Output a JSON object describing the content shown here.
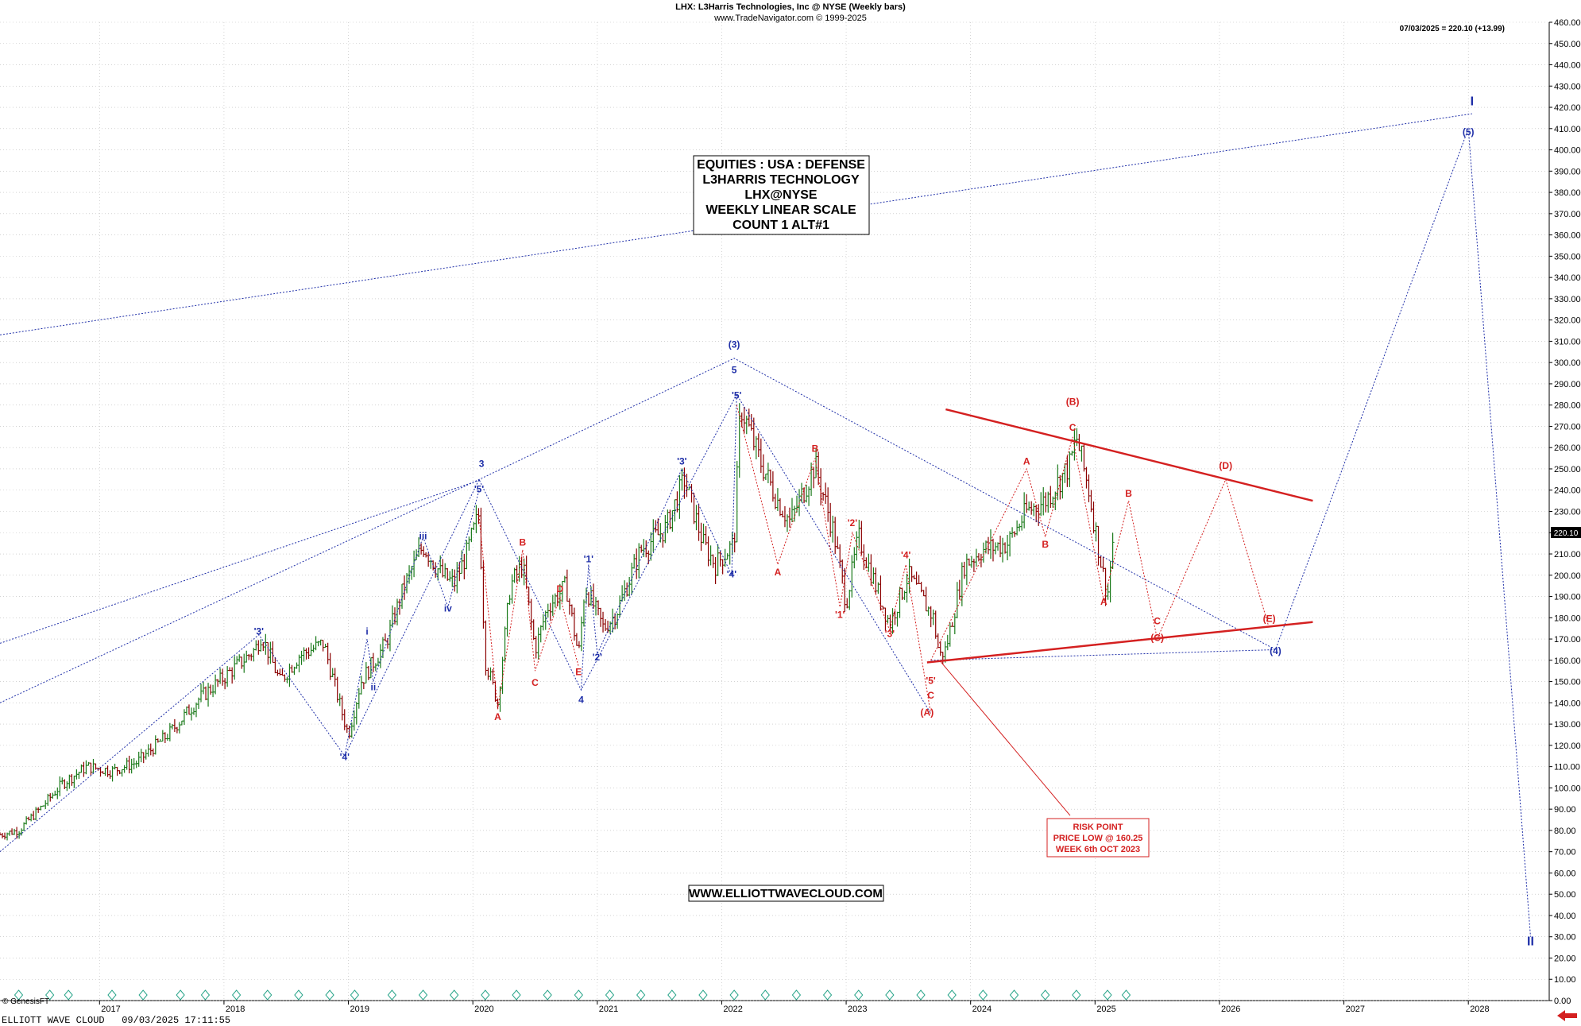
{
  "header": {
    "title": "LHX:  L3Harris Technologies, Inc @ NYSE  (Weekly bars)",
    "source": "www.TradeNavigator.com © 1999-2025",
    "last_price_note": "07/03/2025 = 220.10 (+13.99)"
  },
  "info_box": {
    "lines": [
      "EQUITIES : USA : DEFENSE",
      "L3HARRIS TECHNOLOGY",
      "LHX@NYSE",
      "WEEKLY LINEAR SCALE",
      "COUNT 1 ALT#1"
    ]
  },
  "risk_box": {
    "lines": [
      "RISK POINT",
      "PRICE LOW @ 160.25",
      "WEEK 6th OCT 2023"
    ]
  },
  "website": "WWW.ELLIOTTWAVECLOUD.COM",
  "footer": {
    "left": "ELLIOTT WAVE CLOUD   09/03/2025 17:11:55",
    "copyright": "© GenesisFT"
  },
  "price_tag": "220.10",
  "colors": {
    "blue": "#1f2fa8",
    "red": "#d42020",
    "bar_up": "#1a7a1a",
    "bar_down": "#8b0000",
    "grid": "#b9b9b9",
    "earnings_marker": "#2aa58a"
  },
  "chart_data": {
    "type": "line",
    "title": "LHX:  L3Harris Technologies, Inc @ NYSE  (Weekly bars)",
    "xlabel": "",
    "ylabel": "",
    "ylim": [
      0,
      460
    ],
    "y_ticks": [
      0,
      10,
      20,
      30,
      40,
      50,
      60,
      70,
      80,
      90,
      100,
      110,
      120,
      130,
      140,
      150,
      160,
      170,
      180,
      190,
      200,
      210,
      220,
      230,
      240,
      250,
      260,
      270,
      280,
      290,
      300,
      310,
      320,
      330,
      340,
      350,
      360,
      370,
      380,
      390,
      400,
      410,
      420,
      430,
      440,
      450,
      460
    ],
    "x_ticks": [
      "2017",
      "2018",
      "2019",
      "2020",
      "2021",
      "2022",
      "2023",
      "2024",
      "2025",
      "2026",
      "2027",
      "2028"
    ],
    "xlim": [
      2016.2,
      2028.65
    ],
    "grid": true,
    "price_path": [
      [
        2016.2,
        78
      ],
      [
        2016.35,
        80
      ],
      [
        2016.55,
        92
      ],
      [
        2016.7,
        102
      ],
      [
        2016.9,
        110
      ],
      [
        2017.1,
        108
      ],
      [
        2017.3,
        112
      ],
      [
        2017.55,
        125
      ],
      [
        2017.8,
        142
      ],
      [
        2018.0,
        152
      ],
      [
        2018.25,
        165
      ],
      [
        2018.3,
        172
      ],
      [
        2018.45,
        150
      ],
      [
        2018.6,
        162
      ],
      [
        2018.8,
        168
      ],
      [
        2018.95,
        135
      ],
      [
        2019.0,
        125
      ],
      [
        2019.1,
        150
      ],
      [
        2019.3,
        168
      ],
      [
        2019.45,
        195
      ],
      [
        2019.6,
        214
      ],
      [
        2019.75,
        200
      ],
      [
        2019.85,
        196
      ],
      [
        2019.95,
        210
      ],
      [
        2020.05,
        229
      ],
      [
        2020.1,
        160
      ],
      [
        2020.2,
        140
      ],
      [
        2020.3,
        195
      ],
      [
        2020.4,
        205
      ],
      [
        2020.5,
        165
      ],
      [
        2020.6,
        185
      ],
      [
        2020.75,
        195
      ],
      [
        2020.85,
        162
      ],
      [
        2020.9,
        195
      ],
      [
        2021.05,
        175
      ],
      [
        2021.15,
        182
      ],
      [
        2021.35,
        212
      ],
      [
        2021.55,
        222
      ],
      [
        2021.7,
        245
      ],
      [
        2021.85,
        215
      ],
      [
        2021.95,
        205
      ],
      [
        2022.1,
        215
      ],
      [
        2022.15,
        280
      ],
      [
        2022.3,
        255
      ],
      [
        2022.45,
        235
      ],
      [
        2022.55,
        225
      ],
      [
        2022.75,
        252
      ],
      [
        2022.9,
        220
      ],
      [
        2023.0,
        187
      ],
      [
        2023.1,
        218
      ],
      [
        2023.25,
        193
      ],
      [
        2023.35,
        177
      ],
      [
        2023.5,
        200
      ],
      [
        2023.6,
        190
      ],
      [
        2023.7,
        180
      ],
      [
        2023.75,
        162
      ],
      [
        2023.8,
        165
      ],
      [
        2023.95,
        205
      ],
      [
        2024.1,
        212
      ],
      [
        2024.3,
        215
      ],
      [
        2024.45,
        230
      ],
      [
        2024.6,
        235
      ],
      [
        2024.8,
        252
      ],
      [
        2024.85,
        265
      ],
      [
        2024.95,
        240
      ],
      [
        2025.05,
        205
      ],
      [
        2025.1,
        190
      ],
      [
        2025.15,
        220
      ]
    ],
    "wave_labels": [
      {
        "text": "'3'",
        "x": 2018.28,
        "y": 172,
        "color": "blue"
      },
      {
        "text": "'4'",
        "x": 2018.97,
        "y": 113,
        "color": "blue"
      },
      {
        "text": "i",
        "x": 2019.15,
        "y": 172,
        "color": "blue"
      },
      {
        "text": "ii",
        "x": 2019.2,
        "y": 146,
        "color": "blue"
      },
      {
        "text": "iii",
        "x": 2019.6,
        "y": 217,
        "color": "blue"
      },
      {
        "text": "iv",
        "x": 2019.8,
        "y": 183,
        "color": "blue"
      },
      {
        "text": "'5'",
        "x": 2020.05,
        "y": 239,
        "color": "blue"
      },
      {
        "text": "3",
        "x": 2020.07,
        "y": 251,
        "color": "blue"
      },
      {
        "text": "A",
        "x": 2020.2,
        "y": 132,
        "color": "red"
      },
      {
        "text": "B",
        "x": 2020.4,
        "y": 214,
        "color": "red"
      },
      {
        "text": "C",
        "x": 2020.5,
        "y": 148,
        "color": "red"
      },
      {
        "text": "D",
        "x": 2020.7,
        "y": 192,
        "color": "red"
      },
      {
        "text": "E",
        "x": 2020.85,
        "y": 153,
        "color": "red"
      },
      {
        "text": "4",
        "x": 2020.87,
        "y": 140,
        "color": "blue"
      },
      {
        "text": "'1'",
        "x": 2020.93,
        "y": 206,
        "color": "blue"
      },
      {
        "text": "'2'",
        "x": 2021.0,
        "y": 160,
        "color": "blue"
      },
      {
        "text": "'3'",
        "x": 2021.68,
        "y": 252,
        "color": "blue"
      },
      {
        "text": "'4'",
        "x": 2022.08,
        "y": 199,
        "color": "blue"
      },
      {
        "text": "'5'",
        "x": 2022.12,
        "y": 283,
        "color": "blue"
      },
      {
        "text": "5",
        "x": 2022.1,
        "y": 295,
        "color": "blue"
      },
      {
        "text": "(3)",
        "x": 2022.1,
        "y": 307,
        "color": "blue"
      },
      {
        "text": "A",
        "x": 2022.45,
        "y": 200,
        "color": "red"
      },
      {
        "text": "B",
        "x": 2022.75,
        "y": 258,
        "color": "red"
      },
      {
        "text": "'1'",
        "x": 2022.95,
        "y": 180,
        "color": "red"
      },
      {
        "text": "'2'",
        "x": 2023.05,
        "y": 223,
        "color": "red"
      },
      {
        "text": "'3'",
        "x": 2023.35,
        "y": 171,
        "color": "red"
      },
      {
        "text": "'4'",
        "x": 2023.48,
        "y": 208,
        "color": "red"
      },
      {
        "text": "'5'",
        "x": 2023.68,
        "y": 149,
        "color": "red"
      },
      {
        "text": "C",
        "x": 2023.68,
        "y": 142,
        "color": "red"
      },
      {
        "text": "(A)",
        "x": 2023.65,
        "y": 134,
        "color": "red"
      },
      {
        "text": "A",
        "x": 2024.45,
        "y": 252,
        "color": "red"
      },
      {
        "text": "B",
        "x": 2024.6,
        "y": 213,
        "color": "red"
      },
      {
        "text": "C",
        "x": 2024.82,
        "y": 268,
        "color": "red"
      },
      {
        "text": "(B)",
        "x": 2024.82,
        "y": 280,
        "color": "red"
      },
      {
        "text": "A",
        "x": 2025.07,
        "y": 186,
        "color": "red"
      },
      {
        "text": "B",
        "x": 2025.27,
        "y": 237,
        "color": "red"
      },
      {
        "text": "C",
        "x": 2025.5,
        "y": 177,
        "color": "red"
      },
      {
        "text": "(C)",
        "x": 2025.5,
        "y": 169,
        "color": "red"
      },
      {
        "text": "(D)",
        "x": 2026.05,
        "y": 250,
        "color": "red"
      },
      {
        "text": "(E)",
        "x": 2026.4,
        "y": 178,
        "color": "red"
      },
      {
        "text": "(4)",
        "x": 2026.45,
        "y": 163,
        "color": "blue"
      },
      {
        "text": "(5)",
        "x": 2028.0,
        "y": 407,
        "color": "blue"
      },
      {
        "text": "I",
        "x": 2028.03,
        "y": 421,
        "color": "blue"
      },
      {
        "text": "II",
        "x": 2028.5,
        "y": 26,
        "color": "blue"
      }
    ],
    "blue_wave_path": [
      [
        2016.2,
        70
      ],
      [
        2018.28,
        172
      ],
      [
        2018.97,
        115
      ],
      [
        2020.05,
        245
      ],
      [
        2020.87,
        146
      ],
      [
        2022.12,
        285
      ],
      [
        2023.68,
        135
      ]
    ],
    "blue_subwave_path": [
      [
        2018.97,
        115
      ],
      [
        2019.15,
        170
      ],
      [
        2019.2,
        150
      ],
      [
        2019.6,
        218
      ],
      [
        2019.8,
        185
      ],
      [
        2020.05,
        240
      ]
    ],
    "blue_sub2_path": [
      [
        2020.87,
        146
      ],
      [
        2020.93,
        205
      ],
      [
        2021.0,
        163
      ],
      [
        2021.68,
        250
      ],
      [
        2022.08,
        200
      ],
      [
        2022.12,
        285
      ]
    ],
    "blue_projection_path": [
      [
        2023.68,
        160
      ],
      [
        2026.45,
        165
      ],
      [
        2028.0,
        410
      ],
      [
        2028.5,
        30
      ]
    ],
    "blue_channel_lines": [
      [
        [
          2016.2,
          313
        ],
        [
          2028.03,
          417
        ]
      ],
      [
        [
          2016.2,
          140
        ],
        [
          2020.05,
          245
        ],
        [
          2022.1,
          302
        ],
        [
          2026.45,
          165
        ]
      ],
      [
        [
          2016.2,
          168
        ],
        [
          2020.07,
          245
        ]
      ]
    ],
    "red_wave_path": [
      [
        2020.05,
        228
      ],
      [
        2020.2,
        137
      ],
      [
        2020.4,
        212
      ],
      [
        2020.5,
        155
      ],
      [
        2020.7,
        190
      ],
      [
        2020.85,
        157
      ]
    ],
    "red_wave_path2": [
      [
        2022.12,
        280
      ],
      [
        2022.45,
        205
      ],
      [
        2022.75,
        255
      ],
      [
        2022.95,
        185
      ],
      [
        2023.05,
        220
      ],
      [
        2023.35,
        174
      ],
      [
        2023.48,
        205
      ],
      [
        2023.68,
        135
      ]
    ],
    "red_wave_path3": [
      [
        2023.68,
        160
      ],
      [
        2024.45,
        250
      ],
      [
        2024.6,
        218
      ],
      [
        2024.82,
        265
      ],
      [
        2025.07,
        188
      ],
      [
        2025.27,
        235
      ],
      [
        2025.5,
        170
      ],
      [
        2026.05,
        245
      ],
      [
        2026.4,
        175
      ]
    ],
    "red_triangle_lines": [
      [
        [
          2023.8,
          278
        ],
        [
          2026.75,
          235
        ]
      ],
      [
        [
          2023.65,
          159
        ],
        [
          2026.75,
          178
        ]
      ]
    ],
    "risk_line": [
      [
        2023.75,
        160
      ],
      [
        2024.8,
        87
      ]
    ],
    "earnings_markers_x": [
      2016.35,
      2016.6,
      2016.75,
      2017.1,
      2017.35,
      2017.65,
      2017.85,
      2018.1,
      2018.35,
      2018.6,
      2018.85,
      2019.05,
      2019.35,
      2019.6,
      2019.85,
      2020.1,
      2020.35,
      2020.6,
      2020.85,
      2021.1,
      2021.35,
      2021.6,
      2021.85,
      2022.1,
      2022.35,
      2022.6,
      2022.85,
      2023.1,
      2023.35,
      2023.6,
      2023.85,
      2024.1,
      2024.35,
      2024.6,
      2024.85,
      2025.1,
      2025.25
    ]
  }
}
